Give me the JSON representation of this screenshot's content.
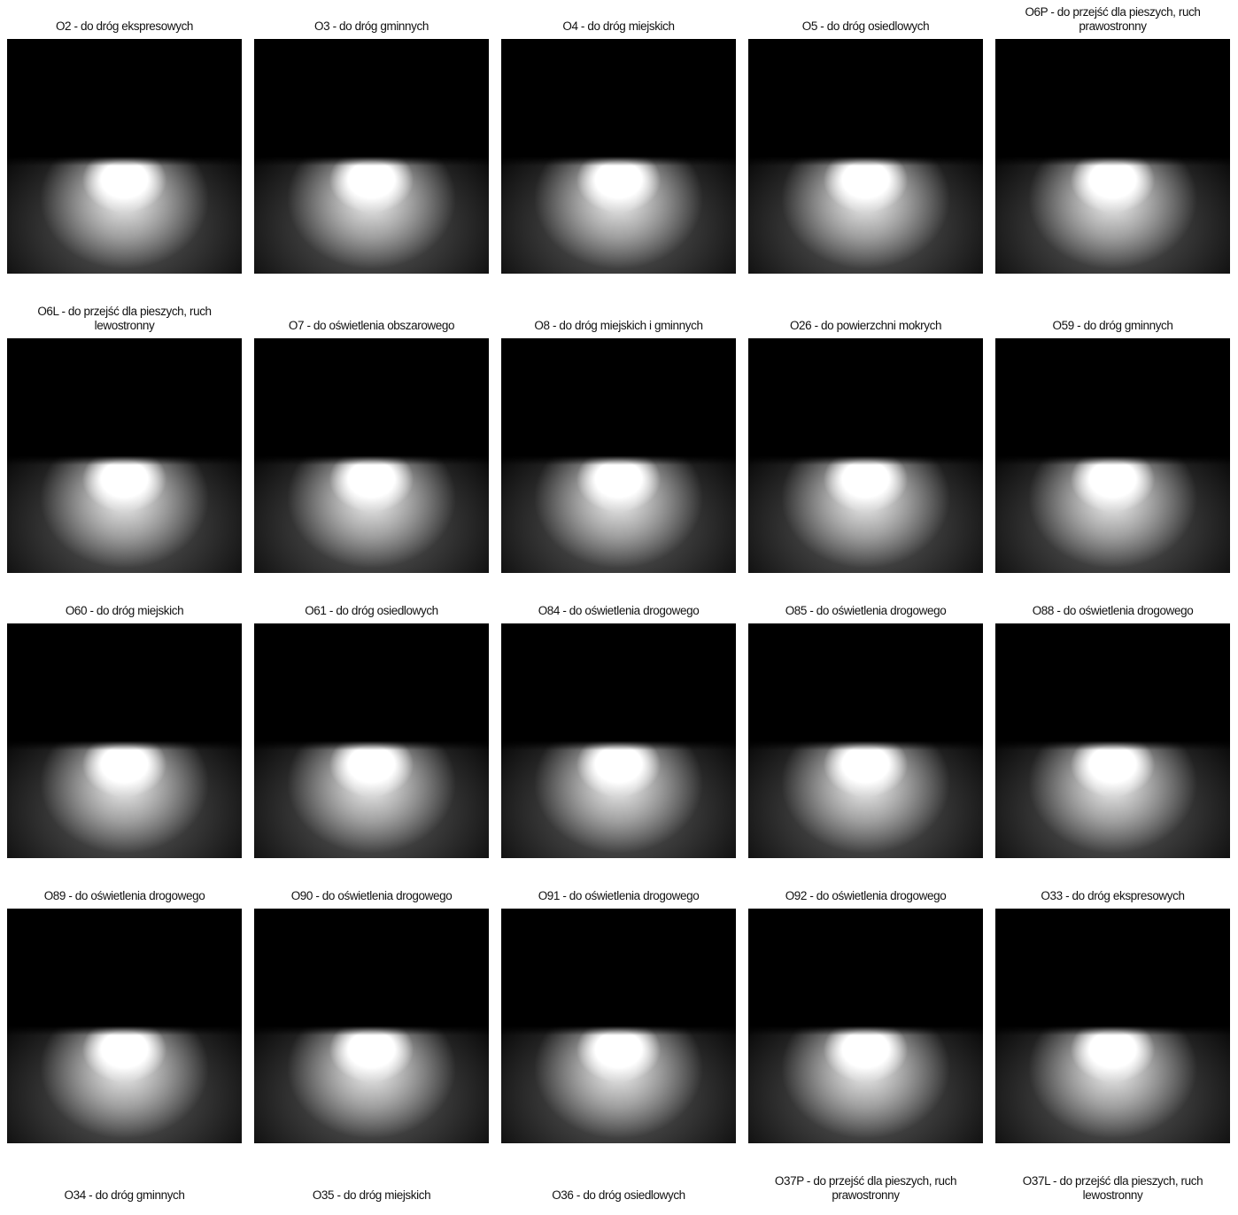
{
  "items": [
    {
      "caption": "O2 - do dróg ekspresowych"
    },
    {
      "caption": "O3 - do dróg gminnych"
    },
    {
      "caption": "O4 - do dróg miejskich"
    },
    {
      "caption": "O5 - do dróg osiedlowych"
    },
    {
      "caption": "O6P - do przejść dla pieszych, ruch prawostronny"
    },
    {
      "caption": "O6L - do przejść dla pieszych, ruch lewostronny"
    },
    {
      "caption": "O7 - do oświetlenia obszarowego"
    },
    {
      "caption": "O8 - do dróg miejskich i gminnych"
    },
    {
      "caption": "O26 - do powierzchni mokrych"
    },
    {
      "caption": "O59 - do dróg gminnych"
    },
    {
      "caption": "O60 - do dróg miejskich"
    },
    {
      "caption": "O61 - do dróg osiedlowych"
    },
    {
      "caption": "O84 - do oświetlenia drogowego"
    },
    {
      "caption": "O85 - do oświetlenia drogowego"
    },
    {
      "caption": "O88 - do oświetlenia drogowego"
    },
    {
      "caption": "O89 - do oświetlenia drogowego"
    },
    {
      "caption": "O90 - do oświetlenia drogowego"
    },
    {
      "caption": "O91 - do oświetlenia drogowego"
    },
    {
      "caption": "O92 - do oświetlenia drogowego"
    },
    {
      "caption": "O33 - do dróg ekspresowych"
    },
    {
      "caption": "O34 - do dróg gminnych"
    },
    {
      "caption": "O35 - do dróg miejskich"
    },
    {
      "caption": "O36 - do dróg osiedlowych"
    },
    {
      "caption": "O37P - do przejść dla pieszych, ruch prawostronny"
    },
    {
      "caption": "O37L - do przejść dla pieszych, ruch lewostronny"
    }
  ]
}
